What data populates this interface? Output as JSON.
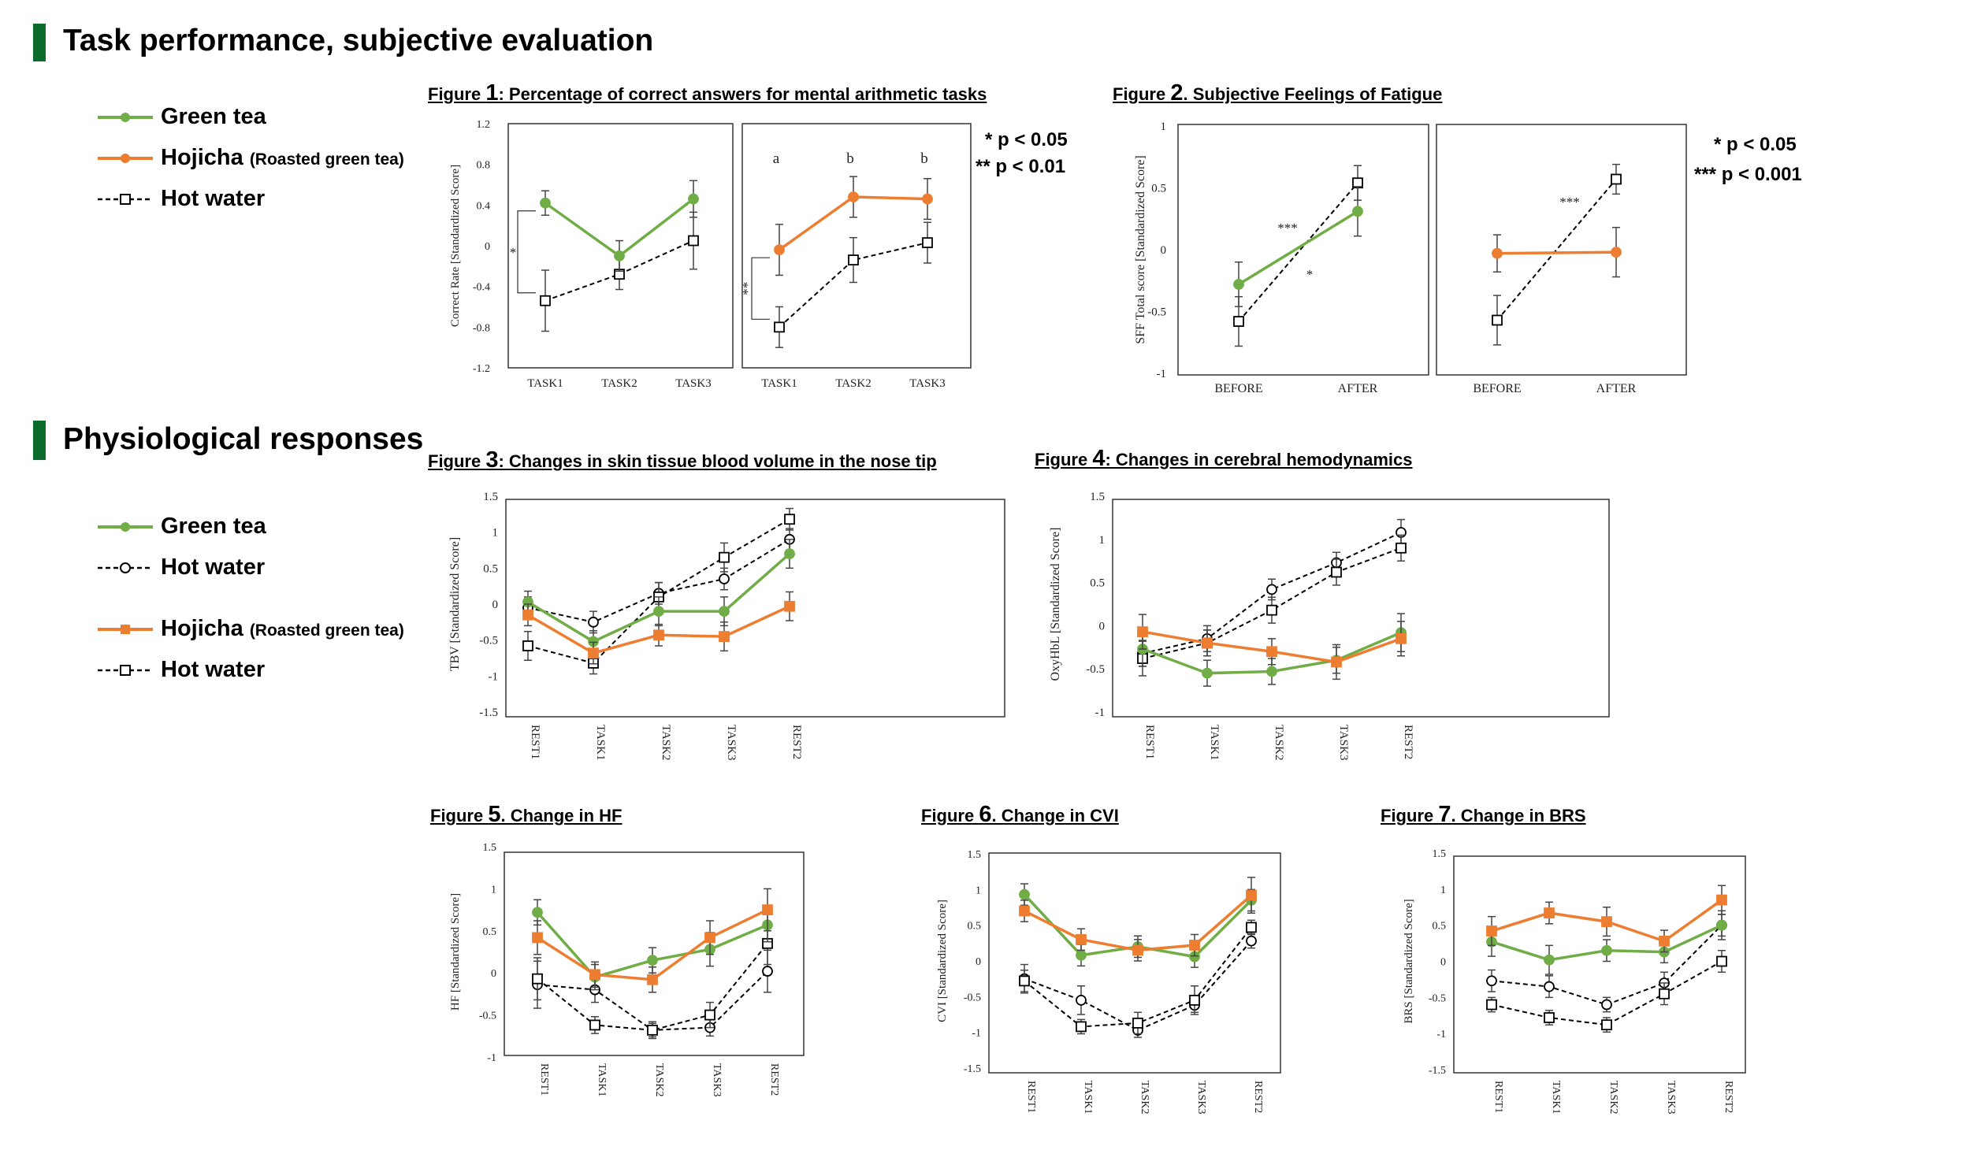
{
  "sections": {
    "task": "Task performance, subjective evaluation",
    "physio": "Physiological responses"
  },
  "legend1": {
    "green": "Green tea",
    "hojicha": "Hojicha",
    "hojicha_note": "(Roasted green tea)",
    "water": "Hot water"
  },
  "legend2": {
    "green": "Green tea",
    "water_a": "Hot water",
    "hojicha": "Hojicha",
    "hojicha_note": "(Roasted green tea)",
    "water_b": "Hot water"
  },
  "figures": {
    "f1": {
      "prefix": "Figure ",
      "num": "1",
      "rest": ": Percentage of correct answers for mental arithmetic tasks"
    },
    "f2": {
      "prefix": "Figure ",
      "num": "2",
      "rest": ". Subjective Feelings of Fatigue"
    },
    "f3": {
      "prefix": "Figure ",
      "num": "3",
      "rest": ": Changes in skin tissue blood volume in the nose tip"
    },
    "f4": {
      "prefix": "Figure ",
      "num": "4",
      "rest": ": Changes in cerebral hemodynamics"
    },
    "f5": {
      "prefix": "Figure ",
      "num": "5",
      "rest": ". Change in HF"
    },
    "f6": {
      "prefix": "Figure ",
      "num": "6",
      "rest": ". Change in CVI"
    },
    "f7": {
      "prefix": "Figure ",
      "num": "7",
      "rest": ". Change in BRS"
    }
  },
  "pnotes": {
    "f1_a": "* p < 0.05",
    "f1_b": "** p < 0.01",
    "f2_a": "* p < 0.05",
    "f2_b": "*** p < 0.001"
  },
  "colors": {
    "green": "#70ad47",
    "orange": "#ed7d31",
    "water": "#000000",
    "heading_bar": "#0a6b2a"
  },
  "chart_data": [
    {
      "id": "fig1",
      "type": "line",
      "ylabel": "Correct Rate [Standardized Score]",
      "ylim": [
        -1.2,
        1.2
      ],
      "yticks": [
        "1.2",
        "0.8",
        "0.4",
        "0",
        "-0.4",
        "-0.8",
        "-1.2"
      ],
      "panels": [
        {
          "categories": [
            "TASK1",
            "TASK2",
            "TASK3"
          ],
          "letters": [],
          "series": [
            {
              "key": "water",
              "values": [
                -0.54,
                -0.28,
                0.05
              ],
              "err": [
                0.3,
                0.15,
                0.28
              ]
            },
            {
              "key": "green",
              "values": [
                0.42,
                -0.1,
                0.46
              ],
              "err": [
                0.12,
                0.15,
                0.18
              ]
            }
          ],
          "sig": "*"
        },
        {
          "categories": [
            "TASK1",
            "TASK2",
            "TASK3"
          ],
          "letters": [
            "a",
            "b",
            "b"
          ],
          "series": [
            {
              "key": "water",
              "values": [
                -0.8,
                -0.14,
                0.03
              ],
              "err": [
                0.2,
                0.22,
                0.2
              ]
            },
            {
              "key": "hojicha",
              "values": [
                -0.04,
                0.48,
                0.46
              ],
              "err": [
                0.25,
                0.2,
                0.2
              ]
            }
          ],
          "sig": "**"
        }
      ]
    },
    {
      "id": "fig2",
      "type": "line",
      "ylabel": "SFF Total score [Standardized Score]",
      "ylim": [
        -1,
        1
      ],
      "yticks": [
        "1",
        "0.5",
        "0",
        "-0.5",
        "-1"
      ],
      "panels": [
        {
          "categories": [
            "BEFORE",
            "AFTER"
          ],
          "series": [
            {
              "key": "water",
              "values": [
                -0.58,
                0.54
              ],
              "err": [
                0.2,
                0.14
              ]
            },
            {
              "key": "green",
              "values": [
                -0.28,
                0.31
              ],
              "err": [
                0.18,
                0.2
              ]
            }
          ],
          "annotations": [
            "***",
            "*"
          ]
        },
        {
          "categories": [
            "BEFORE",
            "AFTER"
          ],
          "series": [
            {
              "key": "water",
              "values": [
                -0.57,
                0.57
              ],
              "err": [
                0.2,
                0.12
              ]
            },
            {
              "key": "hojicha",
              "values": [
                -0.03,
                -0.02
              ],
              "err": [
                0.15,
                0.2
              ]
            }
          ],
          "annotations": [
            "***"
          ]
        }
      ]
    },
    {
      "id": "fig3",
      "type": "line",
      "ylabel": "TBV [Standardized Score]",
      "ylim": [
        -1.5,
        1.5
      ],
      "yticks": [
        "1.5",
        "1",
        "0.5",
        "0",
        "-0.5",
        "-1",
        "-1.5"
      ],
      "categories": [
        "REST1",
        "TASK1",
        "TASK2",
        "TASK3",
        "REST2"
      ],
      "series": [
        {
          "key": "water_a",
          "values": [
            -0.05,
            -0.25,
            0.15,
            0.35,
            0.9
          ],
          "err": [
            0.15,
            0.15,
            0.15,
            0.15,
            0.15
          ]
        },
        {
          "key": "water_b",
          "values": [
            -0.58,
            -0.82,
            0.1,
            0.65,
            1.18
          ],
          "err": [
            0.2,
            0.15,
            0.2,
            0.2,
            0.15
          ]
        },
        {
          "key": "green",
          "values": [
            0.03,
            -0.52,
            -0.1,
            -0.1,
            0.7
          ],
          "err": [
            0.15,
            0.15,
            0.2,
            0.2,
            0.2
          ]
        },
        {
          "key": "hojicha",
          "values": [
            -0.15,
            -0.68,
            -0.43,
            -0.45,
            -0.03
          ],
          "err": [
            0.15,
            0.15,
            0.15,
            0.2,
            0.2
          ]
        }
      ]
    },
    {
      "id": "fig4",
      "type": "line",
      "ylabel": "OxyHbL [Standardized Score]",
      "ylim": [
        -1,
        1.5
      ],
      "yticks": [
        "1.5",
        "1",
        "0.5",
        "0",
        "-0.5",
        "-1"
      ],
      "categories": [
        "REST1",
        "TASK1",
        "TASK2",
        "TASK3",
        "REST2"
      ],
      "series": [
        {
          "key": "water_a",
          "values": [
            -0.32,
            -0.15,
            0.42,
            0.73,
            1.08
          ],
          "err": [
            0.15,
            0.15,
            0.12,
            0.12,
            0.15
          ]
        },
        {
          "key": "water_b",
          "values": [
            -0.38,
            -0.2,
            0.18,
            0.62,
            0.9
          ],
          "err": [
            0.2,
            0.15,
            0.15,
            0.15,
            0.15
          ]
        },
        {
          "key": "green",
          "values": [
            -0.27,
            -0.55,
            -0.53,
            -0.4,
            -0.08
          ],
          "err": [
            0.2,
            0.15,
            0.15,
            0.15,
            0.22
          ]
        },
        {
          "key": "hojicha",
          "values": [
            -0.07,
            -0.2,
            -0.3,
            -0.42,
            -0.15
          ],
          "err": [
            0.2,
            0.15,
            0.15,
            0.2,
            0.2
          ]
        }
      ]
    },
    {
      "id": "fig5",
      "type": "line",
      "ylabel": "HF [Standardized Score]",
      "ylim": [
        -1,
        1.5
      ],
      "yticks": [
        "1.5",
        "1",
        "0.5",
        "0",
        "-0.5",
        "-1"
      ],
      "categories": [
        "REST1",
        "TASK1",
        "TASK2",
        "TASK3",
        "REST2"
      ],
      "series": [
        {
          "key": "water_a",
          "values": [
            -0.14,
            -0.2,
            -0.68,
            -0.65,
            0.02
          ],
          "err": [
            0.28,
            0.15,
            0.08,
            0.1,
            0.25
          ]
        },
        {
          "key": "water_b",
          "values": [
            -0.07,
            -0.62,
            -0.68,
            -0.5,
            0.35
          ],
          "err": [
            0.25,
            0.1,
            0.1,
            0.15,
            0.25
          ]
        },
        {
          "key": "green",
          "values": [
            0.72,
            -0.05,
            0.15,
            0.28,
            0.57
          ],
          "err": [
            0.15,
            0.15,
            0.15,
            0.2,
            0.2
          ]
        },
        {
          "key": "hojicha",
          "values": [
            0.42,
            -0.02,
            -0.08,
            0.42,
            0.75
          ],
          "err": [
            0.2,
            0.15,
            0.15,
            0.2,
            0.25
          ]
        }
      ]
    },
    {
      "id": "fig6",
      "type": "line",
      "ylabel": "CVI [Standardized Score]",
      "ylim": [
        -1.5,
        1.5
      ],
      "yticks": [
        "1.5",
        "1",
        "0.5",
        "0",
        "-0.5",
        "-1",
        "-1.5"
      ],
      "categories": [
        "REST1",
        "TASK1",
        "TASK2",
        "TASK3",
        "REST2"
      ],
      "series": [
        {
          "key": "water_a",
          "values": [
            -0.25,
            -0.55,
            -0.97,
            -0.62,
            0.28
          ],
          "err": [
            0.2,
            0.2,
            0.1,
            0.1,
            0.1
          ]
        },
        {
          "key": "water_b",
          "values": [
            -0.28,
            -0.92,
            -0.87,
            -0.55,
            0.47
          ],
          "err": [
            0.15,
            0.1,
            0.15,
            0.2,
            0.1
          ]
        },
        {
          "key": "green",
          "values": [
            0.93,
            0.08,
            0.2,
            0.06,
            0.85
          ],
          "err": [
            0.15,
            0.15,
            0.15,
            0.15,
            0.15
          ]
        },
        {
          "key": "hojicha",
          "values": [
            0.7,
            0.3,
            0.15,
            0.22,
            0.92
          ],
          "err": [
            0.15,
            0.15,
            0.15,
            0.15,
            0.25
          ]
        }
      ]
    },
    {
      "id": "fig7",
      "type": "line",
      "ylabel": "BRS [Standardized Score]",
      "ylim": [
        -1.5,
        1.5
      ],
      "yticks": [
        "1.5",
        "1",
        "0.5",
        "0",
        "-0.5",
        "-1",
        "-1.5"
      ],
      "categories": [
        "REST1",
        "TASK1",
        "TASK2",
        "TASK3",
        "REST2"
      ],
      "series": [
        {
          "key": "water_a",
          "values": [
            -0.27,
            -0.35,
            -0.6,
            -0.3,
            0.5
          ],
          "err": [
            0.15,
            0.15,
            0.1,
            0.15,
            0.15
          ]
        },
        {
          "key": "water_b",
          "values": [
            -0.6,
            -0.78,
            -0.88,
            -0.45,
            0.0
          ],
          "err": [
            0.1,
            0.1,
            0.1,
            0.15,
            0.15
          ]
        },
        {
          "key": "green",
          "values": [
            0.27,
            0.02,
            0.15,
            0.13,
            0.5
          ],
          "err": [
            0.2,
            0.2,
            0.15,
            0.15,
            0.2
          ]
        },
        {
          "key": "hojicha",
          "values": [
            0.42,
            0.67,
            0.55,
            0.28,
            0.85
          ],
          "err": [
            0.2,
            0.15,
            0.2,
            0.15,
            0.2
          ]
        }
      ]
    }
  ]
}
